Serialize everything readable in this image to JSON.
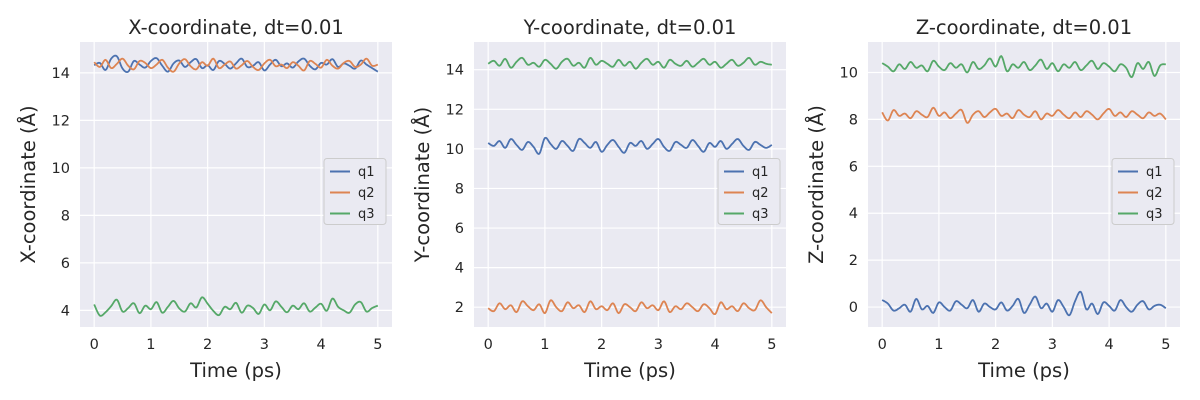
{
  "colors": {
    "q1": "#4c72b0",
    "q2": "#dd8452",
    "q3": "#55a868",
    "background": "#eaeaf2",
    "grid": "#ffffff"
  },
  "chart_data": [
    {
      "type": "line",
      "title": "X-coordinate, dt=0.01",
      "xlabel": "Time (ps)",
      "ylabel": "X-coordinate (Å)",
      "xlim": [
        -0.25,
        5.25
      ],
      "ylim": [
        3.3,
        15.3
      ],
      "xticks": [
        0,
        1,
        2,
        3,
        4,
        5
      ],
      "yticks": [
        4,
        6,
        8,
        10,
        12,
        14
      ],
      "grid": true,
      "legend": {
        "position": "center-right"
      },
      "x_range": [
        0,
        5
      ],
      "series": [
        {
          "name": "q1",
          "mean": 14.3,
          "values": [
            14.32,
            14.42,
            14.12,
            14.6,
            14.7,
            14.18,
            14.05,
            14.5,
            14.35,
            14.22,
            14.5,
            14.62,
            14.3,
            14.05,
            14.4,
            14.52,
            14.25,
            14.45,
            14.58,
            14.2,
            14.32,
            14.12,
            14.5,
            14.38,
            14.18,
            14.4,
            14.6,
            14.25,
            14.3,
            14.45,
            14.1,
            14.35,
            14.55,
            14.28,
            14.4,
            14.22,
            14.48,
            14.6,
            14.3,
            14.15,
            14.42,
            14.35,
            14.58,
            14.25,
            14.4,
            14.3,
            14.18,
            14.52,
            14.35,
            14.2,
            14.05
          ]
        },
        {
          "name": "q2",
          "mean": 14.3,
          "values": [
            14.45,
            14.25,
            14.55,
            14.2,
            14.38,
            14.6,
            14.3,
            14.15,
            14.5,
            14.42,
            14.2,
            14.35,
            14.55,
            14.22,
            14.05,
            14.4,
            14.58,
            14.28,
            14.15,
            14.45,
            14.3,
            14.6,
            14.2,
            14.35,
            14.48,
            14.18,
            14.32,
            14.5,
            14.25,
            14.12,
            14.4,
            14.55,
            14.28,
            14.35,
            14.2,
            14.45,
            14.3,
            14.1,
            14.5,
            14.38,
            14.22,
            14.55,
            14.3,
            14.18,
            14.42,
            14.5,
            14.25,
            14.35,
            14.6,
            14.3,
            14.35
          ]
        },
        {
          "name": "q3",
          "mean": 4.15,
          "values": [
            4.25,
            3.78,
            3.92,
            4.18,
            4.45,
            3.95,
            4.1,
            4.3,
            3.88,
            4.2,
            4.05,
            4.35,
            3.9,
            4.15,
            4.4,
            4.08,
            3.95,
            4.3,
            4.12,
            4.55,
            4.28,
            3.98,
            3.8,
            4.15,
            4.05,
            4.32,
            3.9,
            4.2,
            4.1,
            3.85,
            4.25,
            4.0,
            4.38,
            4.15,
            3.92,
            4.2,
            4.05,
            4.3,
            3.95,
            4.12,
            4.28,
            3.98,
            4.5,
            4.15,
            4.0,
            3.9,
            4.25,
            4.35,
            3.95,
            4.1,
            4.2
          ]
        }
      ]
    },
    {
      "type": "line",
      "title": "Y-coordinate, dt=0.01",
      "xlabel": "Time (ps)",
      "ylabel": "Y-coordinate (Å)",
      "xlim": [
        -0.25,
        5.25
      ],
      "ylim": [
        1.0,
        15.4
      ],
      "xticks": [
        0,
        1,
        2,
        3,
        4,
        5
      ],
      "yticks": [
        2,
        4,
        6,
        8,
        10,
        12,
        14
      ],
      "grid": true,
      "legend": {
        "position": "center-right"
      },
      "x_range": [
        0,
        5
      ],
      "series": [
        {
          "name": "q1",
          "mean": 10.2,
          "values": [
            10.3,
            10.15,
            10.4,
            10.05,
            10.5,
            10.2,
            9.95,
            10.35,
            10.1,
            9.75,
            10.55,
            10.25,
            10.0,
            10.4,
            10.15,
            9.9,
            10.5,
            10.3,
            10.05,
            10.35,
            9.85,
            10.2,
            10.45,
            10.1,
            9.8,
            10.3,
            10.15,
            10.4,
            10.0,
            10.25,
            10.5,
            10.1,
            9.9,
            10.35,
            10.2,
            10.05,
            10.45,
            10.15,
            9.85,
            10.3,
            10.1,
            10.4,
            10.0,
            10.25,
            10.5,
            10.15,
            9.95,
            10.35,
            10.2,
            10.05,
            10.2
          ]
        },
        {
          "name": "q2",
          "mean": 2.0,
          "values": [
            1.95,
            1.8,
            2.2,
            1.9,
            2.1,
            1.75,
            2.3,
            2.05,
            1.85,
            2.15,
            1.7,
            2.35,
            2.0,
            1.8,
            2.25,
            1.95,
            2.1,
            1.75,
            2.3,
            1.9,
            2.05,
            1.85,
            2.2,
            1.7,
            2.15,
            2.0,
            1.8,
            2.25,
            1.95,
            2.1,
            1.85,
            2.3,
            1.75,
            2.05,
            1.9,
            2.2,
            2.0,
            1.8,
            2.15,
            1.95,
            1.65,
            2.25,
            1.9,
            2.05,
            1.8,
            2.2,
            1.95,
            1.85,
            2.35,
            2.0,
            1.7
          ]
        },
        {
          "name": "q3",
          "mean": 14.3,
          "values": [
            14.3,
            14.45,
            14.2,
            14.55,
            14.1,
            14.4,
            14.6,
            14.25,
            14.35,
            14.15,
            14.5,
            14.3,
            14.05,
            14.4,
            14.55,
            14.2,
            14.35,
            14.1,
            14.6,
            14.25,
            14.45,
            14.3,
            14.15,
            14.5,
            14.2,
            14.4,
            14.05,
            14.35,
            14.55,
            14.25,
            14.4,
            14.1,
            14.5,
            14.3,
            14.2,
            14.45,
            14.15,
            14.35,
            14.55,
            14.25,
            14.4,
            14.1,
            14.3,
            14.5,
            14.2,
            14.35,
            14.6,
            14.25,
            14.4,
            14.3,
            14.25
          ]
        }
      ]
    },
    {
      "type": "line",
      "title": "Z-coordinate, dt=0.01",
      "xlabel": "Time (ps)",
      "ylabel": "Z-coordinate (Å)",
      "xlim": [
        -0.25,
        5.25
      ],
      "ylim": [
        -0.85,
        11.3
      ],
      "xticks": [
        0,
        1,
        2,
        3,
        4,
        5
      ],
      "yticks": [
        0,
        2,
        4,
        6,
        8,
        10
      ],
      "grid": true,
      "legend": {
        "position": "center-right"
      },
      "x_range": [
        0,
        5
      ],
      "series": [
        {
          "name": "q1",
          "mean": 0.0,
          "values": [
            0.3,
            0.15,
            -0.15,
            -0.05,
            0.1,
            -0.2,
            0.35,
            -0.1,
            0.05,
            -0.25,
            0.2,
            0.0,
            -0.15,
            0.25,
            0.1,
            -0.05,
            0.3,
            -0.2,
            0.15,
            0.0,
            -0.1,
            0.2,
            -0.15,
            0.05,
            0.35,
            -0.25,
            0.1,
            0.45,
            -0.05,
            0.15,
            -0.2,
            0.3,
            0.0,
            -0.35,
            0.25,
            0.65,
            -0.1,
            0.15,
            -0.3,
            0.2,
            0.05,
            -0.15,
            0.3,
            0.0,
            -0.2,
            0.1,
            0.25,
            -0.1,
            0.05,
            0.1,
            -0.05
          ]
        },
        {
          "name": "q2",
          "mean": 8.2,
          "values": [
            8.3,
            7.95,
            8.4,
            8.15,
            8.25,
            8.05,
            8.35,
            8.2,
            8.1,
            8.5,
            8.15,
            8.3,
            8.05,
            8.25,
            8.4,
            7.85,
            8.2,
            8.35,
            8.1,
            8.3,
            8.45,
            8.15,
            8.25,
            8.05,
            8.4,
            8.2,
            8.1,
            8.35,
            8.0,
            8.25,
            8.15,
            8.4,
            8.2,
            8.05,
            8.3,
            8.1,
            8.35,
            8.2,
            8.0,
            8.25,
            8.45,
            8.15,
            8.3,
            8.1,
            8.35,
            8.2,
            8.05,
            8.3,
            8.15,
            8.25,
            8.0
          ]
        },
        {
          "name": "q3",
          "mean": 10.2,
          "values": [
            10.4,
            10.25,
            10.05,
            10.35,
            10.15,
            10.45,
            10.2,
            10.3,
            10.05,
            10.5,
            10.25,
            10.1,
            10.4,
            10.2,
            10.35,
            10.0,
            10.45,
            10.15,
            10.3,
            10.6,
            10.25,
            10.7,
            10.05,
            10.35,
            10.2,
            10.45,
            10.1,
            10.3,
            10.55,
            10.15,
            10.4,
            10.05,
            10.35,
            10.2,
            10.45,
            10.1,
            10.3,
            10.5,
            10.15,
            10.4,
            10.25,
            10.05,
            10.35,
            10.2,
            9.8,
            10.4,
            10.15,
            10.45,
            9.85,
            10.3,
            10.35
          ]
        }
      ]
    }
  ]
}
